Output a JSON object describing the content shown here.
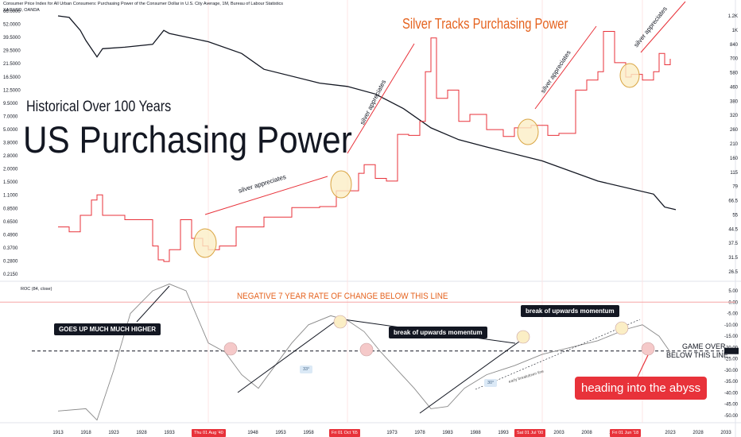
{
  "header": {
    "line1": "Consumer Price Index for All Urban Consumers: Purchasing Power of the Consumer Dollar in U.S. City Average, 1M, Bureau of Labour Statistics",
    "line2": "XAGUSD, OANDA",
    "roc_label": "ROC (84, close)"
  },
  "annotations": {
    "subtitle": "Historical Over 100 Years",
    "title": "US Purchasing Power",
    "main_headline": "Silver Tracks Purchasing Power",
    "silver_appreciates": "silver appreciates",
    "negative_line": "NEGATIVE 7 YEAR RATE OF CHANGE BELOW THIS LINE",
    "goes_up": "GOES UP MUCH MUCH HIGHER",
    "break_momentum": "break of upwards momentum",
    "game_over_1": "GAME OVER",
    "game_over_2": "BELOW THIS LINE",
    "abyss": "heading into the abyss",
    "angle_33": "33°",
    "angle_30": "30°",
    "early_breakdown": "early breakdown line"
  },
  "date_badges": [
    "Thu 01 Aug '40",
    "Fri 01 Oct '65",
    "Sat 01 Jul '00",
    "Fri 01 Jun '18"
  ],
  "colors": {
    "cpi": "#131722",
    "silver": "#e8323a",
    "orange": "#e5631f",
    "circle_fill": "#fbeec5",
    "circle_stroke": "#d9a441",
    "roc": "#8a8a8a"
  },
  "chart_data": [
    {
      "type": "line",
      "series": [
        {
          "name": "Consumer Price Index for All Urban Consumers: Purchasing Power of the Consumer Dollar in U.S. City Average",
          "x": [
            1913,
            1915,
            1917,
            1918,
            1920,
            1921,
            1925,
            1930,
            1932,
            1933,
            1940,
            1946,
            1950,
            1960,
            1965,
            1970,
            1975,
            1980,
            1985,
            1990,
            2000,
            2010,
            2020,
            2022,
            2024
          ],
          "y": [
            62,
            60,
            45,
            36,
            25,
            30,
            31,
            33,
            45,
            42,
            35,
            27,
            19,
            14,
            13,
            11,
            8,
            5.2,
            4.0,
            3.4,
            2.5,
            1.6,
            1.2,
            0.9,
            0.85
          ]
        },
        {
          "name": "XAGUSD, OANDA",
          "x": [
            1913,
            1915,
            1917,
            1919,
            1920,
            1921,
            1925,
            1930,
            1931,
            1932,
            1933,
            1935,
            1937,
            1939,
            1940,
            1942,
            1945,
            1950,
            1955,
            1960,
            1963,
            1965,
            1967,
            1968,
            1970,
            1972,
            1974,
            1976,
            1978,
            1979,
            1980,
            1981,
            1983,
            1985,
            1987,
            1990,
            1993,
            1995,
            1998,
            2001,
            2003,
            2006,
            2008,
            2010,
            2011,
            2013,
            2015,
            2016,
            2018,
            2020,
            2021,
            2022,
            2023
          ],
          "y": [
            0.58,
            0.52,
            0.75,
            1.05,
            1.18,
            0.75,
            0.68,
            0.38,
            0.28,
            0.27,
            0.35,
            0.68,
            0.45,
            0.38,
            0.35,
            0.38,
            0.58,
            0.72,
            0.89,
            0.91,
            1.29,
            1.29,
            1.9,
            2.3,
            1.7,
            1.6,
            4.5,
            4.4,
            6.0,
            18.0,
            38.0,
            10.0,
            12.0,
            6.0,
            7.0,
            5.0,
            4.3,
            5.2,
            5.5,
            4.4,
            4.6,
            12.0,
            15.0,
            18.0,
            44.0,
            22.0,
            16.0,
            17.0,
            15.0,
            18.0,
            27.0,
            21.0,
            24.0
          ]
        }
      ],
      "ylim": [
        0.215,
        62.0
      ],
      "y_scale": "log",
      "left_ticks": [
        "66.0000",
        "52.0000",
        "39.5000",
        "29.5000",
        "21.5000",
        "16.5000",
        "12.5000",
        "9.5000",
        "7.0000",
        "5.0000",
        "3.8000",
        "2.8000",
        "2.0000",
        "1.5000",
        "1.1000",
        "0.8500",
        "0.6500",
        "0.4900",
        "0.3700",
        "0.2800",
        "0.2150"
      ],
      "right_ticks": [
        "1.2K",
        "1K",
        "840",
        "700",
        "580",
        "460",
        "380",
        "320",
        "260",
        "210",
        "160",
        "115",
        "79",
        "66.5",
        "55",
        "44.5",
        "37.5",
        "31.5",
        "26.5"
      ]
    },
    {
      "type": "line",
      "series": [
        {
          "name": "ROC (84, close)",
          "x": [
            1913,
            1918,
            1920,
            1923,
            1926,
            1930,
            1933,
            1936,
            1940,
            1943,
            1946,
            1949,
            1952,
            1955,
            1958,
            1962,
            1965,
            1968,
            1971,
            1974,
            1977,
            1980,
            1983,
            1986,
            1990,
            1995,
            2000,
            2005,
            2010,
            2015,
            2018,
            2021,
            2023
          ],
          "y": [
            -48,
            -47,
            -52,
            -30,
            -5,
            5,
            8,
            5,
            -18,
            -22,
            -32,
            -38,
            -28,
            -18,
            -10,
            -6,
            -8,
            -13,
            -22,
            -30,
            -38,
            -47,
            -46,
            -38,
            -32,
            -28,
            -23,
            -20,
            -17,
            -12,
            -10,
            -15,
            -22
          ]
        }
      ],
      "ylim": [
        -50,
        5
      ],
      "reference_lines": [
        {
          "label": "negative",
          "y": 0
        },
        {
          "label": "game over",
          "y": -21.53
        }
      ],
      "right_ticks": [
        "5.00",
        "0.00",
        "-5.00",
        "-10.00",
        "-15.00",
        "-20.00",
        "-21.53",
        "-25.00",
        "-30.00",
        "-35.00",
        "-40.00",
        "-45.00",
        "-50.00"
      ]
    }
  ],
  "x_ticks": [
    "1913",
    "1918",
    "1923",
    "1928",
    "1933",
    "1948",
    "1953",
    "1958",
    "1963",
    "1973",
    "1978",
    "1983",
    "1988",
    "1993",
    "2003",
    "2008",
    "2013",
    "2023",
    "2028",
    "2033"
  ]
}
